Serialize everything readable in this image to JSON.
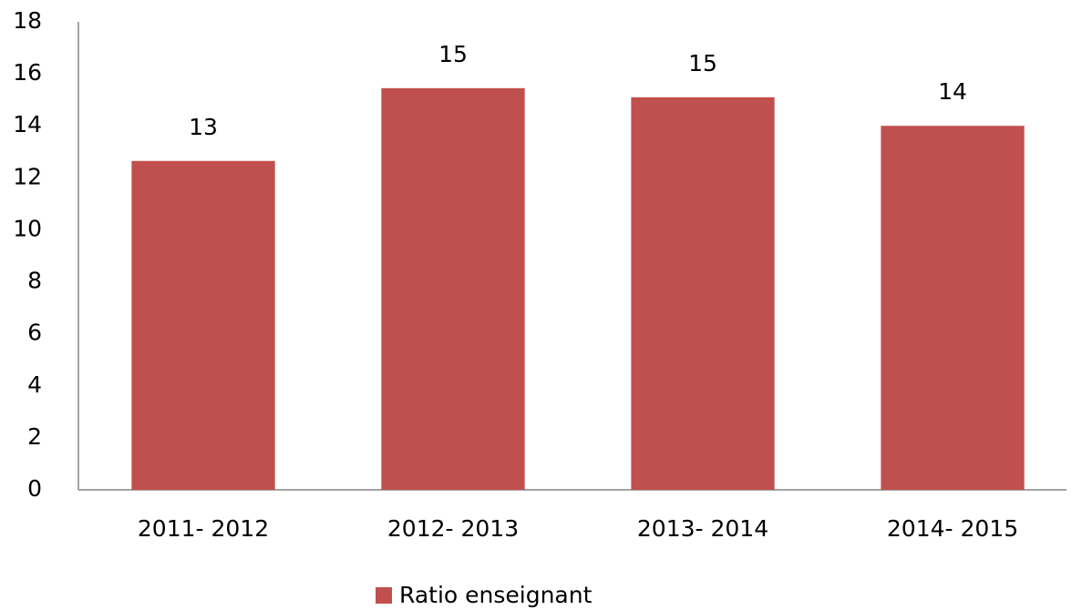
{
  "chart_data": {
    "type": "bar",
    "categories": [
      "2011- 2012",
      "2012- 2013",
      "2013- 2014",
      "2014- 2015"
    ],
    "series": [
      {
        "name": "Ratio enseignant",
        "color": "#c0504d",
        "values": [
          12.65,
          15.45,
          15.1,
          14.0
        ],
        "value_labels": [
          "13",
          "15",
          "15",
          "14"
        ]
      }
    ],
    "ylim": [
      0,
      18
    ],
    "yticks": [
      0,
      2,
      4,
      6,
      8,
      10,
      12,
      14,
      16,
      18
    ],
    "grid": false,
    "legend": "bottom"
  }
}
